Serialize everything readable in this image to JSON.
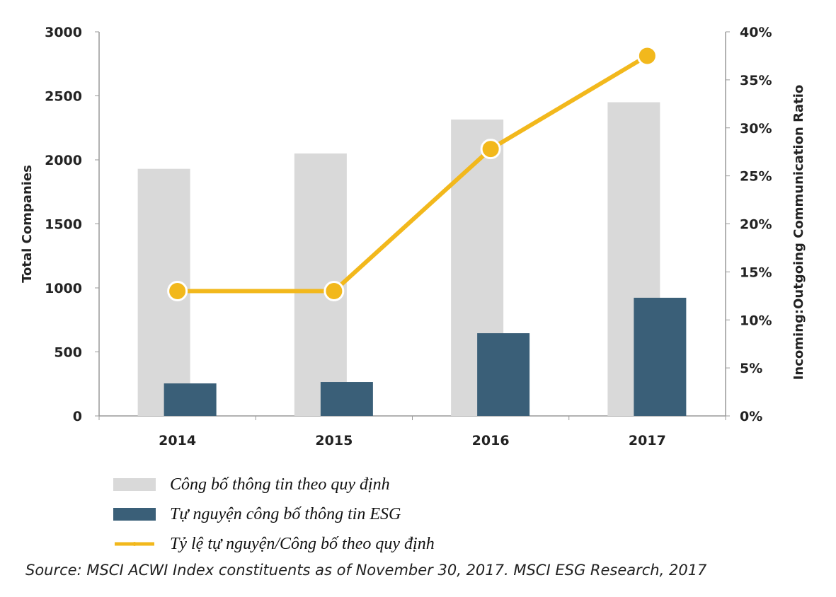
{
  "chart_data": {
    "type": "bar",
    "categories": [
      "2014",
      "2015",
      "2016",
      "2017"
    ],
    "series": [
      {
        "name": "Công bố thông tin theo quy định",
        "kind": "bar",
        "axis": "left",
        "color": "#d9d9d9",
        "values": [
          1930,
          2050,
          2315,
          2450
        ]
      },
      {
        "name": "Tự nguyện công bố thông tin ESG",
        "kind": "bar",
        "axis": "left",
        "color": "#3a5f78",
        "values": [
          254,
          265,
          646,
          923
        ]
      },
      {
        "name": "Tỷ lệ tự nguyện/Công bố theo quy định",
        "kind": "line",
        "axis": "right",
        "color": "#f2b81c",
        "values": [
          13.0,
          13.0,
          27.8,
          37.5
        ]
      }
    ],
    "ylabel": "Total Companies",
    "ylim": [
      0,
      3000
    ],
    "yticks": [
      "0",
      "500",
      "1000",
      "1500",
      "2000",
      "2500",
      "3000"
    ],
    "y2label": "Incoming:Outgoing Communication Ratio",
    "y2lim": [
      0,
      40
    ],
    "y2ticks": [
      "0%",
      "5%",
      "10%",
      "15%",
      "20%",
      "25%",
      "30%",
      "35%",
      "40%"
    ],
    "legend_position": "bottom-left",
    "grid": false
  },
  "source": "Source: MSCI ACWI Index constituents as of November 30, 2017. MSCI ESG Research, 2017"
}
